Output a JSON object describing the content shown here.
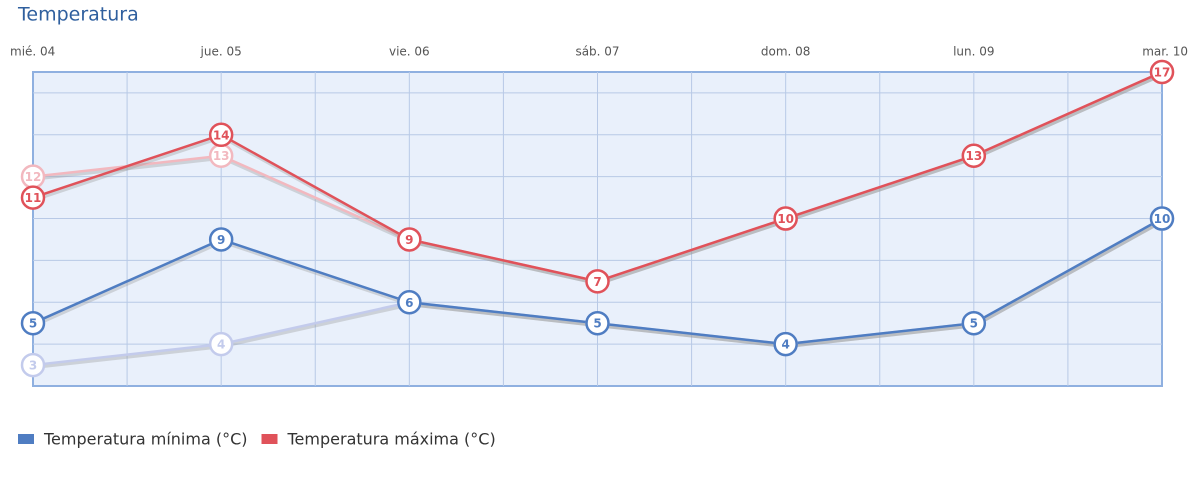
{
  "chart_data": {
    "type": "line",
    "title": "Temperatura",
    "categories": [
      "mié. 04",
      "jue. 05",
      "vie. 06",
      "sáb. 07",
      "dom. 08",
      "lun. 09",
      "mar. 10"
    ],
    "series": [
      {
        "color": "#c3cbec",
        "values": [
          3,
          4,
          6,
          5,
          4,
          5,
          10
        ]
      },
      {
        "color": "#f2b8bf",
        "values": [
          12,
          13,
          9,
          7,
          10,
          13,
          17
        ]
      },
      {
        "name": "Temperatura mínima (°C)",
        "color": "#4f7dc2",
        "values": [
          5,
          9,
          6,
          5,
          4,
          5,
          10
        ]
      },
      {
        "name": "Temperatura máxima (°C)",
        "color": "#e0525a",
        "values": [
          11,
          14,
          9,
          7,
          10,
          13,
          17
        ]
      }
    ],
    "ylim": [
      2,
      17
    ],
    "yticks": [
      4,
      6,
      8,
      10,
      12,
      14,
      16
    ],
    "grid": true
  }
}
